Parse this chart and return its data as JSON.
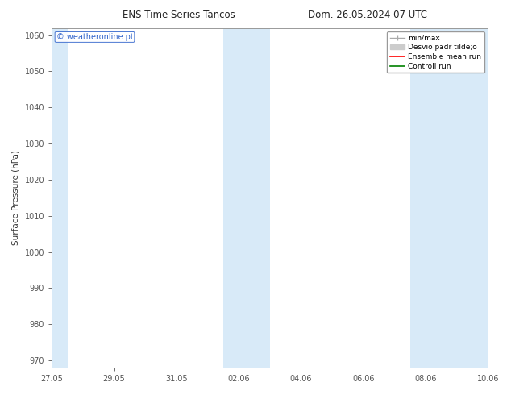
{
  "title_left": "ENS Time Series Tancos",
  "title_right": "Dom. 26.05.2024 07 UTC",
  "ylabel": "Surface Pressure (hPa)",
  "ylim": [
    968,
    1062
  ],
  "yticks": [
    970,
    980,
    990,
    1000,
    1010,
    1020,
    1030,
    1040,
    1050,
    1060
  ],
  "xlim": [
    0,
    14
  ],
  "xtick_labels": [
    "27.05",
    "29.05",
    "31.05",
    "02.06",
    "04.06",
    "06.06",
    "08.06",
    "10.06"
  ],
  "xtick_positions": [
    0,
    2,
    4,
    6,
    8,
    10,
    12,
    14
  ],
  "shaded_bands": [
    {
      "xstart": 0.0,
      "xend": 0.5
    },
    {
      "xstart": 5.5,
      "xend": 7.0
    },
    {
      "xstart": 11.5,
      "xend": 14.0
    }
  ],
  "band_color": "#d8eaf8",
  "background_color": "#ffffff",
  "watermark": "© weatheronline.pt",
  "watermark_color": "#3366cc",
  "legend_labels": [
    "min/max",
    "Desvio padr tilde;o",
    "Ensemble mean run",
    "Controll run"
  ],
  "legend_colors": [
    "#aaaaaa",
    "#cccccc",
    "#ff0000",
    "#008000"
  ],
  "spine_color": "#999999",
  "tick_color": "#555555",
  "font_size_title": 8.5,
  "font_size_axis": 7.5,
  "font_size_ticks": 7,
  "font_size_legend": 6.5,
  "font_size_watermark": 7
}
